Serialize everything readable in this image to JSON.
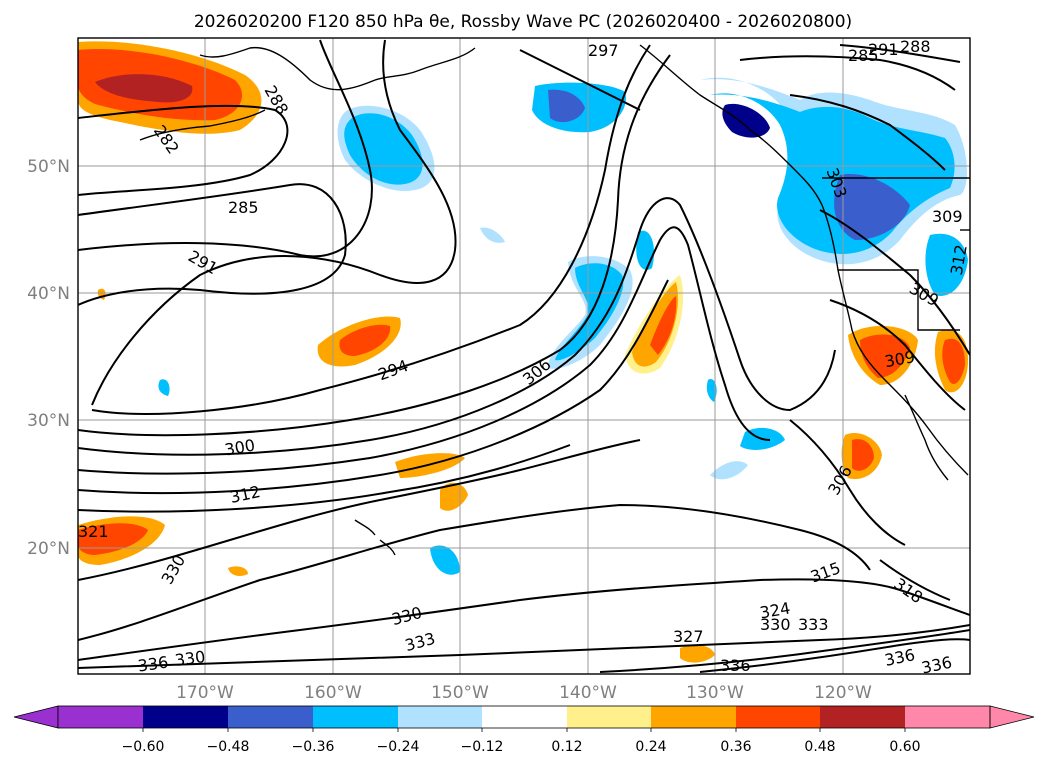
{
  "map": {
    "title": "2026020200 F120 850 hPa θe, Rossby Wave PC (2026020400 - 2026020800)",
    "lon_ticks": [
      "170°W",
      "160°W",
      "150°W",
      "140°W",
      "130°W",
      "120°W"
    ],
    "lat_ticks": [
      "50°N",
      "40°N",
      "30°N",
      "20°N"
    ],
    "contour_labels": [
      "297",
      "291",
      "288",
      "285",
      "288",
      "282",
      "285",
      "291",
      "294",
      "306",
      "300",
      "312",
      "321",
      "330",
      "330",
      "333",
      "336",
      "330",
      "327",
      "336",
      "324",
      "330",
      "333",
      "315",
      "318",
      "336",
      "336",
      "306",
      "309",
      "309",
      "309",
      "312",
      "303"
    ],
    "colorbar": {
      "ticks": [
        "−0.60",
        "−0.48",
        "−0.36",
        "−0.24",
        "−0.12",
        "0.12",
        "0.24",
        "0.36",
        "0.48",
        "0.60"
      ],
      "colors": [
        "#9b30d0",
        "#00008b",
        "#3a5fcd",
        "#00bfff",
        "#b0e2ff",
        "#ffffff",
        "#fff08c",
        "#ffa500",
        "#ff4500",
        "#b22222",
        "#ff88aa"
      ]
    }
  }
}
